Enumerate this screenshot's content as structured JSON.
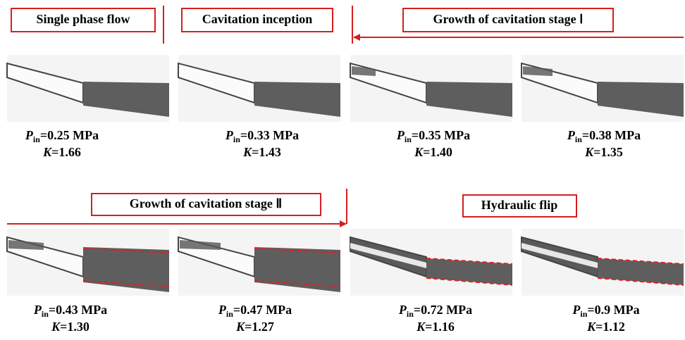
{
  "stages": [
    "Single phase flow",
    "Cavitation inception",
    "Growth of cavitation stage Ⅰ",
    "Growth of cavitation stage Ⅱ",
    "Hydraulic flip"
  ],
  "symbols": {
    "pressure": "P",
    "pressure_sub": "in",
    "k": "K"
  },
  "panels": [
    {
      "pressure": "=0.25 MPa",
      "k": "=1.66"
    },
    {
      "pressure": "=0.33 MPa",
      "k": "=1.43"
    },
    {
      "pressure": "=0.35 MPa",
      "k": "=1.40"
    },
    {
      "pressure": "=0.38 MPa",
      "k": "=1.35"
    },
    {
      "pressure": "=0.43 MPa",
      "k": "=1.30"
    },
    {
      "pressure": "=0.47 MPa",
      "k": "=1.27"
    },
    {
      "pressure": "=0.72 MPa",
      "k": "=1.16"
    },
    {
      "pressure": "=0.9 MPa",
      "k": "=1.12"
    }
  ]
}
